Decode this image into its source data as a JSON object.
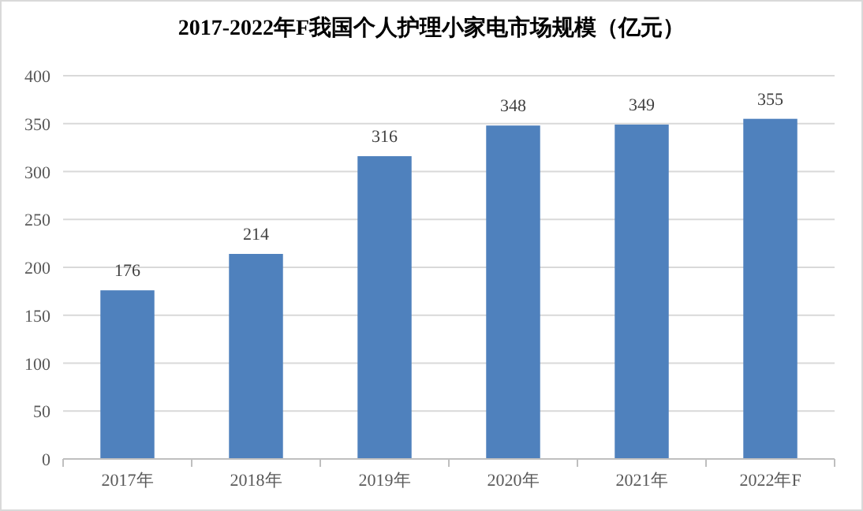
{
  "chart_data": {
    "type": "bar",
    "title": "2017-2022年F我国个人护理小家电市场规模（亿元）",
    "categories": [
      "2017年",
      "2018年",
      "2019年",
      "2020年",
      "2021年",
      "2022年F"
    ],
    "values": [
      176,
      214,
      316,
      348,
      349,
      355
    ],
    "color": "#4f81bd",
    "ylim": [
      0,
      400
    ],
    "yticks": [
      0,
      50,
      100,
      150,
      200,
      250,
      300,
      350,
      400
    ],
    "grid": "y",
    "data_labels": true
  }
}
